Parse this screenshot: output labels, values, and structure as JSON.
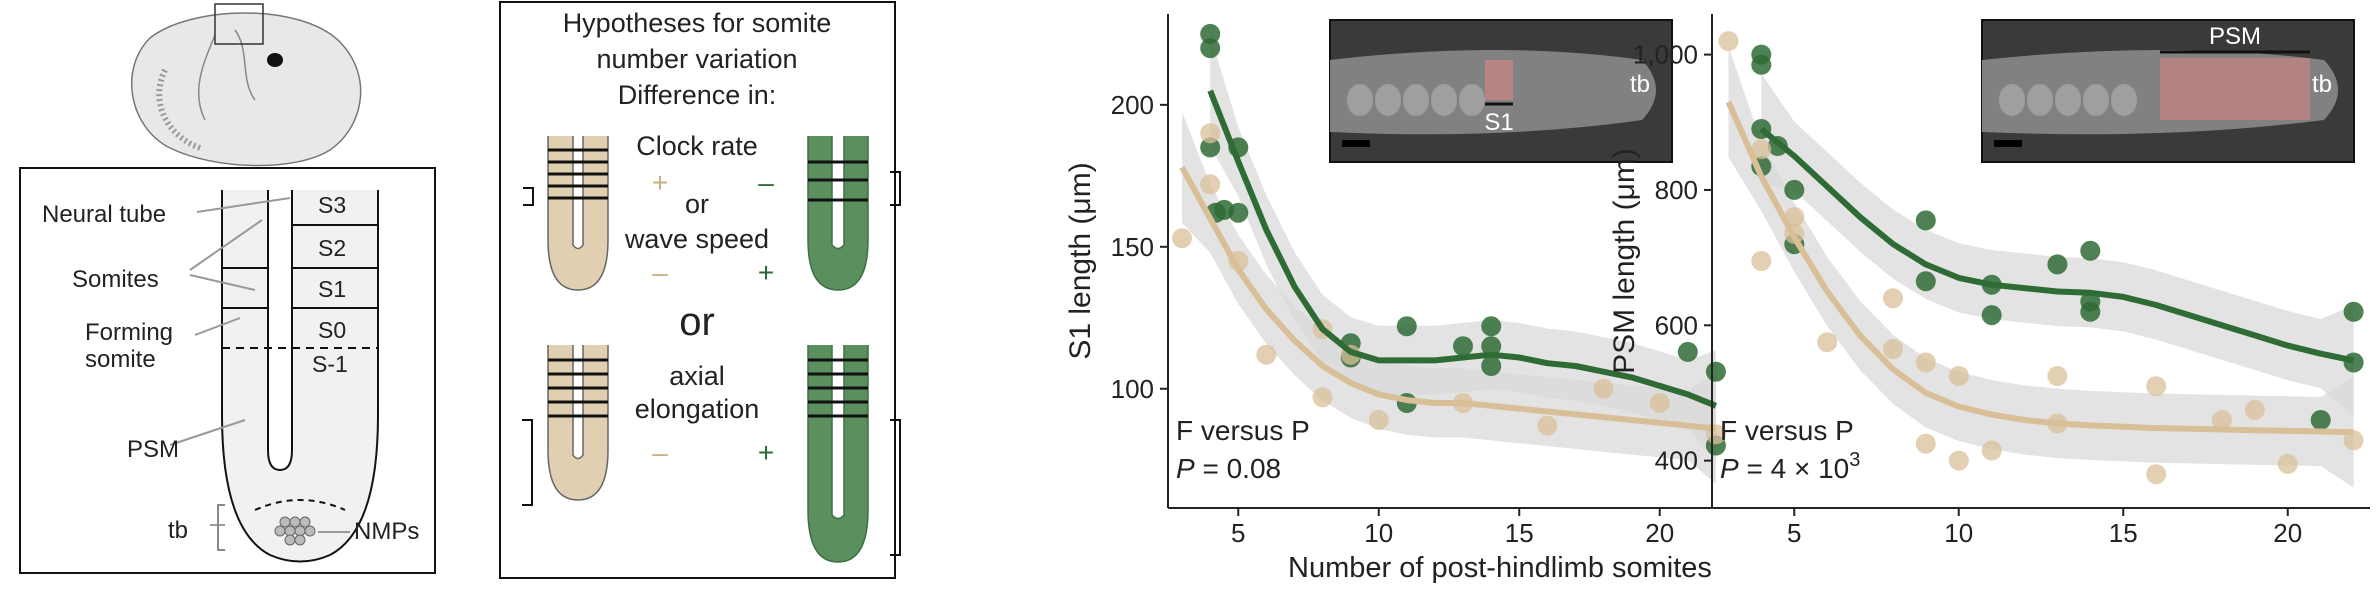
{
  "embryo_panel": {
    "labels": {
      "neural_tube": "Neural tube",
      "somites": "Somites",
      "forming_somite_1": "Forming",
      "forming_somite_2": "somite",
      "psm": "PSM",
      "tb": "tb",
      "nmps": "NMPs",
      "s3": "S3",
      "s2": "S2",
      "s1": "S1",
      "s0": "S0",
      "sm1": "S-1"
    }
  },
  "hypothesis_panel": {
    "title_lines": [
      "Hypotheses for somite",
      "number variation"
    ],
    "difference_in": "Difference in:",
    "clock_rate": "Clock rate",
    "or_small": "or",
    "wave_speed": "wave speed",
    "or_big": "or",
    "axial_1": "axial",
    "axial_2": "elongation",
    "plus": "+",
    "minus": "–"
  },
  "shared_xlabel": "Number of post-hindlimb somites",
  "colors": {
    "F": "#2f6b35",
    "P": "#d9bf98",
    "band": "#d9d9d9"
  },
  "chart_data": [
    {
      "type": "scatter",
      "ylabel": "S1 length (μm)",
      "xlim": [
        2.5,
        22.5
      ],
      "ylim": [
        58,
        232
      ],
      "xticks": [
        5,
        10,
        15,
        20
      ],
      "yticks": [
        100,
        150,
        200
      ],
      "ytick_labels": [
        "100",
        "150",
        "200"
      ],
      "inset_labels": [
        "S1",
        "tb"
      ],
      "annotation": {
        "line1": "F versus P",
        "line2_prefix": "P",
        "line2_value": " = 0.08"
      },
      "series": [
        {
          "name": "F",
          "x": [
            4,
            4,
            4,
            4.2,
            4.5,
            5,
            5,
            9,
            9,
            11,
            11,
            13,
            14,
            14,
            14,
            21,
            22,
            22
          ],
          "y": [
            225,
            220,
            185,
            162,
            163,
            185,
            162,
            116,
            111,
            122,
            95,
            115,
            122,
            115,
            108,
            113,
            106,
            80
          ],
          "fit": [
            [
              4,
              205
            ],
            [
              5,
              180
            ],
            [
              6,
              156
            ],
            [
              7,
              136
            ],
            [
              8,
              121
            ],
            [
              9,
              113
            ],
            [
              10,
              110
            ],
            [
              11,
              110
            ],
            [
              12,
              110
            ],
            [
              13,
              111
            ],
            [
              14,
              112
            ],
            [
              15,
              111
            ],
            [
              16,
              109
            ],
            [
              17,
              108
            ],
            [
              18,
              106
            ],
            [
              19,
              104
            ],
            [
              20,
              101
            ],
            [
              21,
              98
            ],
            [
              22,
              94
            ]
          ]
        },
        {
          "name": "P",
          "x": [
            3,
            4,
            4,
            5,
            6,
            8,
            8,
            9,
            10,
            13,
            16,
            18,
            20,
            22
          ],
          "y": [
            153,
            190,
            172,
            145,
            112,
            121,
            97,
            112,
            89,
            95,
            87,
            100,
            95,
            84
          ],
          "fit": [
            [
              3,
              178
            ],
            [
              4,
              160
            ],
            [
              5,
              142
            ],
            [
              6,
              128
            ],
            [
              7,
              117
            ],
            [
              8,
              108
            ],
            [
              9,
              102
            ],
            [
              10,
              98
            ],
            [
              11,
              96
            ],
            [
              12,
              95
            ],
            [
              13,
              95
            ],
            [
              14,
              94
            ],
            [
              15,
              93
            ],
            [
              16,
              92
            ],
            [
              17,
              91
            ],
            [
              18,
              90
            ],
            [
              19,
              89
            ],
            [
              20,
              88
            ],
            [
              21,
              87
            ],
            [
              22,
              86
            ]
          ]
        }
      ]
    },
    {
      "type": "scatter",
      "ylabel": "PSM length (μm)",
      "xlim": [
        2.5,
        22.5
      ],
      "ylim": [
        330,
        1060
      ],
      "xticks": [
        5,
        10,
        15,
        20
      ],
      "yticks": [
        400,
        600,
        800,
        1000
      ],
      "ytick_labels": [
        "400",
        "600",
        "800",
        "1,000"
      ],
      "inset_labels": [
        "PSM",
        "tb"
      ],
      "annotation": {
        "line1": "F versus P",
        "line2_prefix": "P",
        "line2_value": " = 4 × 10",
        "line2_exp": "3"
      },
      "series": [
        {
          "name": "F",
          "x": [
            4,
            4,
            4,
            4,
            4.5,
            5,
            5,
            9,
            9,
            11,
            11,
            13,
            14,
            14,
            14,
            21,
            22,
            22
          ],
          "y": [
            1000,
            985,
            890,
            835,
            865,
            800,
            720,
            755,
            665,
            660,
            615,
            690,
            710,
            635,
            620,
            460,
            620,
            545
          ],
          "fit": [
            [
              4,
              890
            ],
            [
              5,
              850
            ],
            [
              6,
              805
            ],
            [
              7,
              760
            ],
            [
              8,
              720
            ],
            [
              9,
              690
            ],
            [
              10,
              670
            ],
            [
              11,
              660
            ],
            [
              12,
              655
            ],
            [
              13,
              650
            ],
            [
              14,
              648
            ],
            [
              15,
              642
            ],
            [
              16,
              630
            ],
            [
              17,
              615
            ],
            [
              18,
              600
            ],
            [
              19,
              585
            ],
            [
              20,
              570
            ],
            [
              21,
              558
            ],
            [
              22,
              548
            ]
          ]
        },
        {
          "name": "P",
          "x": [
            3,
            4,
            4,
            5,
            5,
            6,
            8,
            8,
            9,
            9,
            10,
            10,
            11,
            13,
            13,
            16,
            16,
            18,
            19,
            20,
            22
          ],
          "y": [
            1020,
            860,
            695,
            760,
            735,
            575,
            640,
            565,
            545,
            425,
            525,
            400,
            415,
            525,
            455,
            510,
            380,
            460,
            475,
            395,
            430
          ],
          "fit": [
            [
              3,
              930
            ],
            [
              4,
              820
            ],
            [
              5,
              730
            ],
            [
              6,
              650
            ],
            [
              7,
              585
            ],
            [
              8,
              535
            ],
            [
              9,
              500
            ],
            [
              10,
              480
            ],
            [
              11,
              468
            ],
            [
              12,
              460
            ],
            [
              13,
              455
            ],
            [
              14,
              452
            ],
            [
              15,
              450
            ],
            [
              16,
              448
            ],
            [
              17,
              447
            ],
            [
              18,
              446
            ],
            [
              19,
              445
            ],
            [
              20,
              444
            ],
            [
              21,
              443
            ],
            [
              22,
              442
            ]
          ]
        }
      ]
    }
  ]
}
